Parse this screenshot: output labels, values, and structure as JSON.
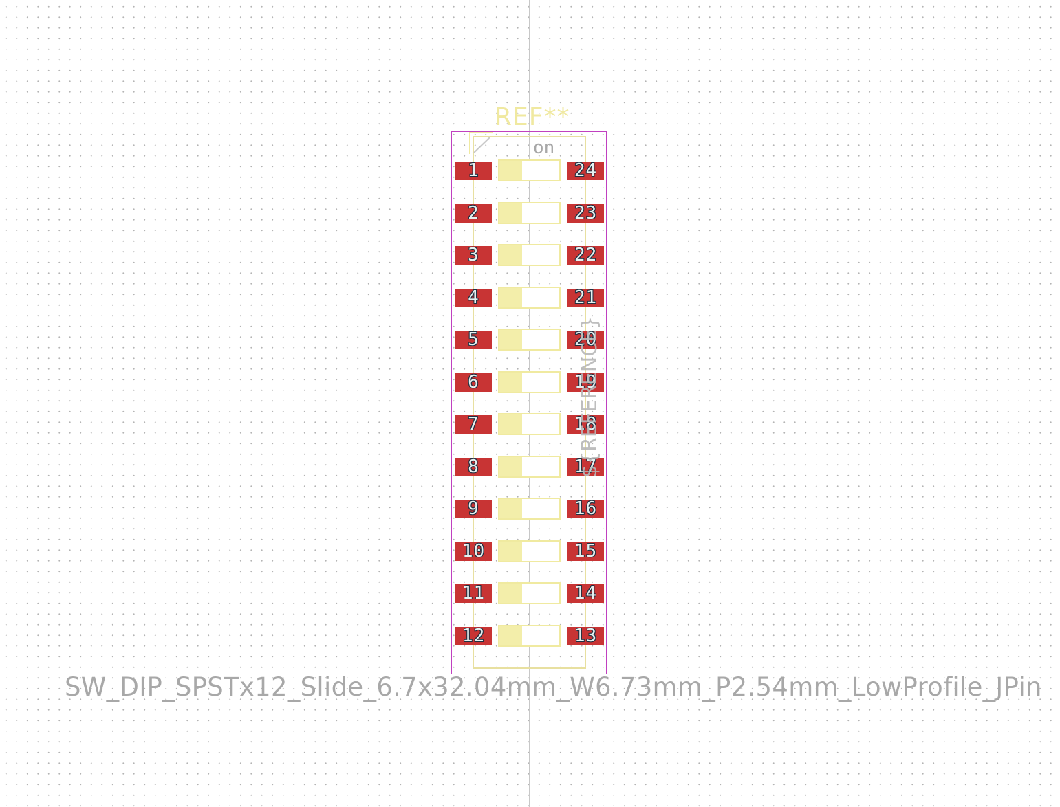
{
  "footprint": {
    "reference": "REF**",
    "reference_field": "${REFERENCE}",
    "value": "SW_DIP_SPSTx12_Slide_6.7x32.04mm_W6.73mm_P2.54mm_LowProfile_JPin",
    "on_label": "on",
    "pads_left": [
      "1",
      "2",
      "3",
      "4",
      "5",
      "6",
      "7",
      "8",
      "9",
      "10",
      "11",
      "12"
    ],
    "pads_right": [
      "24",
      "23",
      "22",
      "21",
      "20",
      "19",
      "18",
      "17",
      "16",
      "15",
      "14",
      "13"
    ],
    "colors": {
      "pad": "#c83434",
      "silkscreen": "#f0eaa0",
      "courtyard": "#c040c0",
      "fab": "#b8b8b8",
      "grid_dot": "#b4b4b4"
    }
  }
}
